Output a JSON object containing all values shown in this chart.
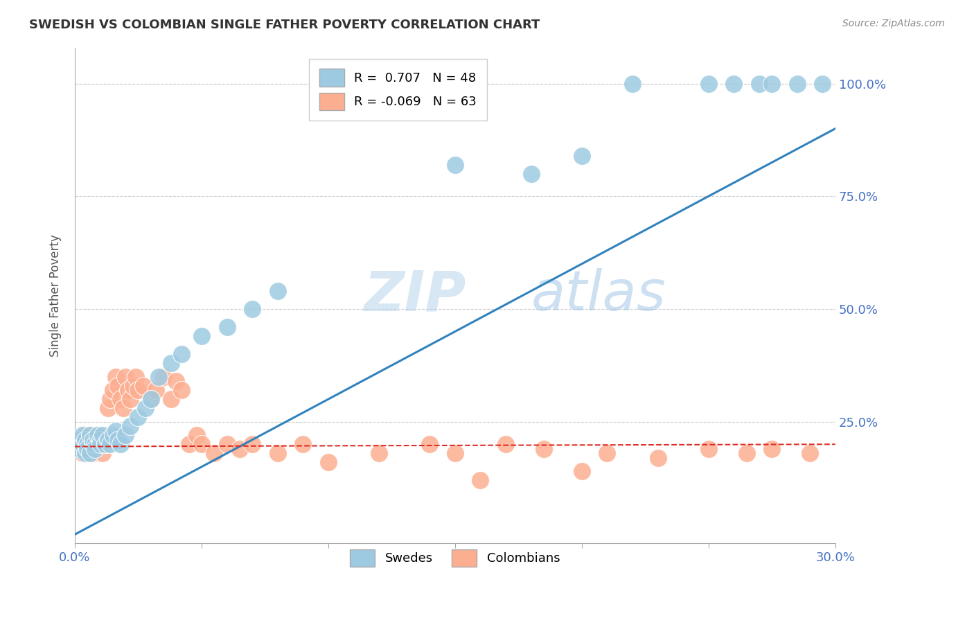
{
  "title": "SWEDISH VS COLOMBIAN SINGLE FATHER POVERTY CORRELATION CHART",
  "source": "Source: ZipAtlas.com",
  "ylabel": "Single Father Poverty",
  "x_range": [
    0.0,
    0.3
  ],
  "y_range": [
    -0.02,
    1.08
  ],
  "blue_color": "#9ecae1",
  "pink_color": "#fcae91",
  "blue_line_color": "#3182bd",
  "pink_line_color": "#de2d26",
  "watermark_zip": "ZIP",
  "watermark_atlas": "atlas",
  "swedish_x": [
    0.001,
    0.002,
    0.002,
    0.003,
    0.003,
    0.004,
    0.004,
    0.005,
    0.005,
    0.006,
    0.006,
    0.007,
    0.007,
    0.008,
    0.008,
    0.009,
    0.01,
    0.01,
    0.011,
    0.012,
    0.013,
    0.014,
    0.015,
    0.016,
    0.017,
    0.018,
    0.02,
    0.022,
    0.025,
    0.028,
    0.03,
    0.033,
    0.038,
    0.042,
    0.05,
    0.06,
    0.07,
    0.08,
    0.15,
    0.18,
    0.2,
    0.22,
    0.25,
    0.26,
    0.27,
    0.275,
    0.285,
    0.295
  ],
  "swedish_y": [
    0.2,
    0.21,
    0.19,
    0.2,
    0.22,
    0.18,
    0.21,
    0.2,
    0.19,
    0.22,
    0.18,
    0.2,
    0.21,
    0.2,
    0.19,
    0.22,
    0.21,
    0.2,
    0.22,
    0.2,
    0.21,
    0.2,
    0.22,
    0.23,
    0.21,
    0.2,
    0.22,
    0.24,
    0.26,
    0.28,
    0.3,
    0.35,
    0.38,
    0.4,
    0.44,
    0.46,
    0.5,
    0.54,
    0.82,
    0.8,
    0.84,
    1.0,
    1.0,
    1.0,
    1.0,
    1.0,
    1.0,
    1.0
  ],
  "colombian_x": [
    0.001,
    0.002,
    0.002,
    0.003,
    0.003,
    0.004,
    0.004,
    0.005,
    0.005,
    0.006,
    0.006,
    0.007,
    0.007,
    0.008,
    0.008,
    0.009,
    0.01,
    0.01,
    0.011,
    0.012,
    0.013,
    0.014,
    0.015,
    0.016,
    0.017,
    0.018,
    0.019,
    0.02,
    0.021,
    0.022,
    0.023,
    0.024,
    0.025,
    0.027,
    0.03,
    0.032,
    0.035,
    0.038,
    0.04,
    0.042,
    0.045,
    0.048,
    0.05,
    0.055,
    0.06,
    0.065,
    0.07,
    0.08,
    0.09,
    0.1,
    0.12,
    0.14,
    0.15,
    0.16,
    0.17,
    0.185,
    0.2,
    0.21,
    0.23,
    0.25,
    0.265,
    0.275,
    0.29
  ],
  "colombian_y": [
    0.2,
    0.21,
    0.19,
    0.2,
    0.18,
    0.22,
    0.2,
    0.19,
    0.21,
    0.2,
    0.22,
    0.18,
    0.2,
    0.21,
    0.19,
    0.22,
    0.2,
    0.21,
    0.18,
    0.2,
    0.28,
    0.3,
    0.32,
    0.35,
    0.33,
    0.3,
    0.28,
    0.35,
    0.32,
    0.3,
    0.33,
    0.35,
    0.32,
    0.33,
    0.3,
    0.32,
    0.35,
    0.3,
    0.34,
    0.32,
    0.2,
    0.22,
    0.2,
    0.18,
    0.2,
    0.19,
    0.2,
    0.18,
    0.2,
    0.16,
    0.18,
    0.2,
    0.18,
    0.12,
    0.2,
    0.19,
    0.14,
    0.18,
    0.17,
    0.19,
    0.18,
    0.19,
    0.18
  ],
  "sw_line_x": [
    0.0,
    0.3
  ],
  "sw_line_y": [
    0.0,
    0.9
  ],
  "col_line_x": [
    0.0,
    0.3
  ],
  "col_line_y": [
    0.195,
    0.2
  ]
}
